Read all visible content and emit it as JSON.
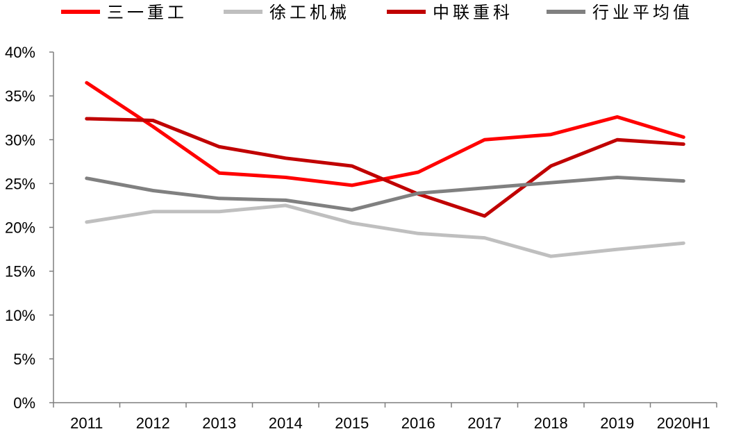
{
  "chart_data": {
    "type": "line",
    "title": "",
    "xlabel": "",
    "ylabel": "",
    "categories": [
      "2011",
      "2012",
      "2013",
      "2014",
      "2015",
      "2016",
      "2017",
      "2018",
      "2019",
      "2020H1"
    ],
    "y_ticks": [
      "0%",
      "5%",
      "10%",
      "15%",
      "20%",
      "25%",
      "30%",
      "35%",
      "40%"
    ],
    "ylim": [
      0,
      40
    ],
    "y_unit": "%",
    "grid": false,
    "legend_position": "top",
    "series": [
      {
        "name": "三一重工",
        "color": "#ff0000",
        "values": [
          36.5,
          31.5,
          26.2,
          25.7,
          24.8,
          26.3,
          30.0,
          30.6,
          32.6,
          30.3
        ]
      },
      {
        "name": "徐工机械",
        "color": "#bfbfbf",
        "values": [
          20.6,
          21.8,
          21.8,
          22.5,
          20.5,
          19.3,
          18.8,
          16.7,
          17.5,
          18.2
        ]
      },
      {
        "name": "中联重科",
        "color": "#c00000",
        "values": [
          32.4,
          32.2,
          29.2,
          27.9,
          27.0,
          23.8,
          21.3,
          27.0,
          30.0,
          29.5
        ]
      },
      {
        "name": "行业平均值",
        "color": "#808080",
        "values": [
          25.6,
          24.2,
          23.3,
          23.1,
          22.0,
          23.9,
          24.5,
          25.1,
          25.7,
          25.3
        ]
      }
    ]
  }
}
